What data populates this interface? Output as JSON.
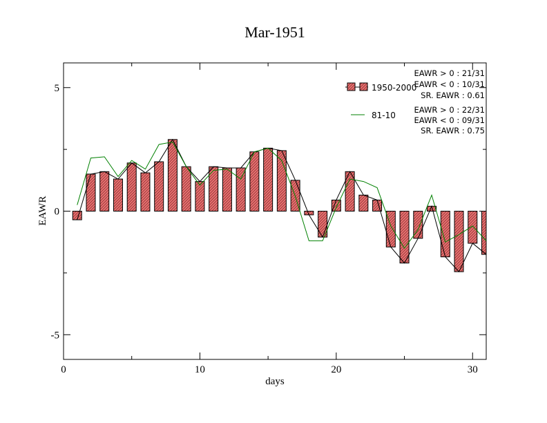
{
  "chart_data": {
    "type": "bar",
    "title": "Mar-1951",
    "xlabel": "days",
    "ylabel": "EAWR",
    "xlim": [
      0,
      31
    ],
    "ylim": [
      -6,
      6
    ],
    "x_ticks": [
      0,
      10,
      20,
      30
    ],
    "y_ticks": [
      -5,
      0,
      5
    ],
    "x_tick_labels": [
      "0",
      "10",
      "20",
      "30"
    ],
    "y_tick_labels": [
      "-5",
      "0",
      "5"
    ],
    "grid": false,
    "legend_position": "top-right",
    "x": [
      1,
      2,
      3,
      4,
      5,
      6,
      7,
      8,
      9,
      10,
      11,
      12,
      13,
      14,
      15,
      16,
      17,
      18,
      19,
      20,
      21,
      22,
      23,
      24,
      25,
      26,
      27,
      28,
      29,
      30,
      31
    ],
    "series": [
      {
        "name": "1950-2000",
        "kind": "bar-with-line",
        "color": "#e87070",
        "line_color": "#000000",
        "values": [
          -0.35,
          1.5,
          1.6,
          1.3,
          1.95,
          1.55,
          2.0,
          2.9,
          1.8,
          1.2,
          1.8,
          1.75,
          1.75,
          2.4,
          2.55,
          2.45,
          1.25,
          -0.15,
          -1.05,
          0.45,
          1.6,
          0.65,
          0.45,
          -1.45,
          -2.1,
          -1.1,
          0.2,
          -1.85,
          -2.45,
          -1.3,
          -1.75
        ]
      },
      {
        "name": "81-10",
        "kind": "line",
        "color": "#008000",
        "values": [
          0.25,
          2.15,
          2.2,
          1.4,
          2.05,
          1.7,
          2.7,
          2.8,
          1.8,
          1.05,
          1.65,
          1.7,
          1.3,
          2.4,
          2.55,
          2.05,
          0.6,
          -1.2,
          -1.2,
          0.15,
          1.3,
          1.2,
          0.95,
          -0.6,
          -1.5,
          -0.75,
          0.65,
          -1.25,
          -0.95,
          -0.6,
          -1.2
        ]
      }
    ],
    "stats": [
      {
        "lines": [
          "EAWR > 0 : 21/31",
          "EAWR < 0 : 10/31",
          "SR. EAWR :  0.61"
        ]
      },
      {
        "lines": [
          "EAWR > 0 : 22/31",
          "EAWR < 0 : 09/31",
          "SR. EAWR :  0.75"
        ]
      }
    ]
  }
}
